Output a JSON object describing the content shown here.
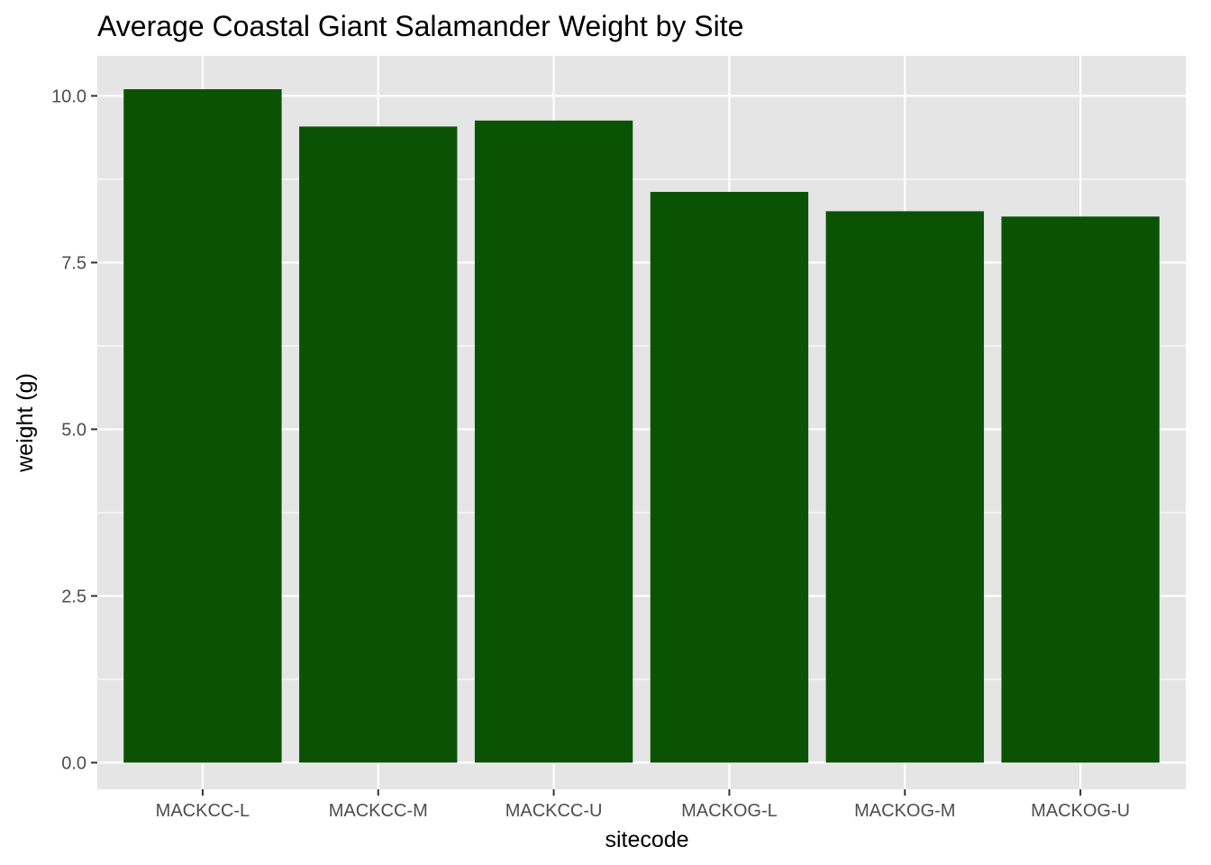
{
  "chart_data": {
    "type": "bar",
    "title": "Average Coastal Giant Salamander Weight by Site",
    "xlabel": "sitecode",
    "ylabel": "weight (g)",
    "categories": [
      "MACKCC-L",
      "MACKCC-M",
      "MACKCC-U",
      "MACKOG-L",
      "MACKOG-M",
      "MACKOG-U"
    ],
    "values": [
      10.1,
      9.54,
      9.63,
      8.56,
      8.27,
      8.19
    ],
    "ylim": [
      -0.4,
      10.6
    ],
    "yticks": [
      0,
      2.5,
      5,
      7.5,
      10
    ],
    "ytick_labels": [
      "0.0",
      "2.5",
      "5.0",
      "7.5",
      "10.0"
    ],
    "grid": true,
    "colors": {
      "bar": "#0b5304",
      "panel": "#e5e5e5",
      "grid": "#ffffff"
    }
  }
}
